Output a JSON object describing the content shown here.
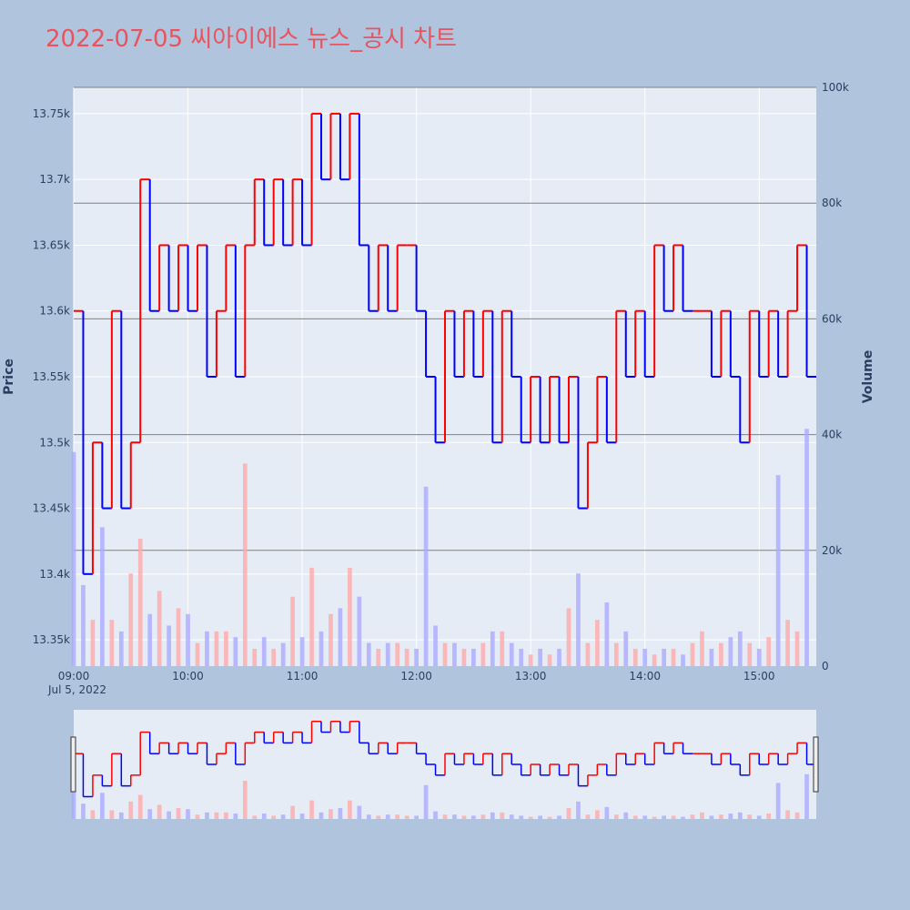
{
  "title": "2022-07-05 씨아이에스 뉴스_공시 차트",
  "chart_data": {
    "type": "candlestick+bar",
    "date_label": "Jul 5, 2022",
    "x_range": [
      "09:00",
      "15:30"
    ],
    "x_ticks": [
      "09:00",
      "10:00",
      "11:00",
      "12:00",
      "13:00",
      "14:00",
      "15:00"
    ],
    "y_price": {
      "label": "Price",
      "range": [
        13330,
        13770
      ],
      "ticks": [
        13350,
        13400,
        13450,
        13500,
        13550,
        13600,
        13650,
        13700,
        13750
      ],
      "tick_labels": [
        "13.35k",
        "13.4k",
        "13.45k",
        "13.5k",
        "13.55k",
        "13.6k",
        "13.65k",
        "13.7k",
        "13.75k"
      ]
    },
    "y_volume": {
      "label": "Volume",
      "range": [
        0,
        100000
      ],
      "ticks": [
        0,
        20000,
        40000,
        60000,
        80000,
        100000
      ],
      "tick_labels": [
        "0",
        "20k",
        "40k",
        "60k",
        "80k",
        "100k"
      ]
    },
    "colors": {
      "up": "#ff0000",
      "down": "#0000ff",
      "up_volume": "#ffaaaa",
      "down_volume": "#aaaaff",
      "grid": "#ffffff",
      "volume_grid": "#808080",
      "plot_bg": "#e5ecf6",
      "page_bg": "#b0c4de"
    },
    "price_series": [
      [
        "09:00",
        13600
      ],
      [
        "09:05",
        13400
      ],
      [
        "09:10",
        13500
      ],
      [
        "09:15",
        13450
      ],
      [
        "09:20",
        13600
      ],
      [
        "09:25",
        13450
      ],
      [
        "09:30",
        13500
      ],
      [
        "09:35",
        13700
      ],
      [
        "09:40",
        13600
      ],
      [
        "09:45",
        13650
      ],
      [
        "09:50",
        13600
      ],
      [
        "09:55",
        13650
      ],
      [
        "10:00",
        13600
      ],
      [
        "10:05",
        13650
      ],
      [
        "10:10",
        13550
      ],
      [
        "10:15",
        13600
      ],
      [
        "10:20",
        13650
      ],
      [
        "10:25",
        13550
      ],
      [
        "10:30",
        13650
      ],
      [
        "10:35",
        13700
      ],
      [
        "10:40",
        13650
      ],
      [
        "10:45",
        13700
      ],
      [
        "10:50",
        13650
      ],
      [
        "10:55",
        13700
      ],
      [
        "11:00",
        13650
      ],
      [
        "11:05",
        13750
      ],
      [
        "11:10",
        13700
      ],
      [
        "11:15",
        13750
      ],
      [
        "11:20",
        13700
      ],
      [
        "11:25",
        13750
      ],
      [
        "11:30",
        13650
      ],
      [
        "11:35",
        13600
      ],
      [
        "11:40",
        13650
      ],
      [
        "11:45",
        13600
      ],
      [
        "11:50",
        13650
      ],
      [
        "11:55",
        13650
      ],
      [
        "12:00",
        13600
      ],
      [
        "12:05",
        13550
      ],
      [
        "12:10",
        13500
      ],
      [
        "12:15",
        13600
      ],
      [
        "12:20",
        13550
      ],
      [
        "12:25",
        13600
      ],
      [
        "12:30",
        13550
      ],
      [
        "12:35",
        13600
      ],
      [
        "12:40",
        13500
      ],
      [
        "12:45",
        13600
      ],
      [
        "12:50",
        13550
      ],
      [
        "12:55",
        13500
      ],
      [
        "13:00",
        13550
      ],
      [
        "13:05",
        13500
      ],
      [
        "13:10",
        13550
      ],
      [
        "13:15",
        13500
      ],
      [
        "13:20",
        13550
      ],
      [
        "13:25",
        13450
      ],
      [
        "13:30",
        13500
      ],
      [
        "13:35",
        13550
      ],
      [
        "13:40",
        13500
      ],
      [
        "13:45",
        13600
      ],
      [
        "13:50",
        13550
      ],
      [
        "13:55",
        13600
      ],
      [
        "14:00",
        13550
      ],
      [
        "14:05",
        13650
      ],
      [
        "14:10",
        13600
      ],
      [
        "14:15",
        13650
      ],
      [
        "14:20",
        13600
      ],
      [
        "14:25",
        13600
      ],
      [
        "14:30",
        13600
      ],
      [
        "14:35",
        13550
      ],
      [
        "14:40",
        13600
      ],
      [
        "14:45",
        13550
      ],
      [
        "14:50",
        13500
      ],
      [
        "14:55",
        13600
      ],
      [
        "15:00",
        13550
      ],
      [
        "15:05",
        13600
      ],
      [
        "15:10",
        13550
      ],
      [
        "15:15",
        13600
      ],
      [
        "15:20",
        13650
      ],
      [
        "15:25",
        13550
      ]
    ],
    "volume_series": [
      [
        "09:00",
        37000
      ],
      [
        "09:05",
        14000
      ],
      [
        "09:10",
        8000
      ],
      [
        "09:15",
        24000
      ],
      [
        "09:20",
        8000
      ],
      [
        "09:25",
        6000
      ],
      [
        "09:30",
        16000
      ],
      [
        "09:35",
        22000
      ],
      [
        "09:40",
        9000
      ],
      [
        "09:45",
        13000
      ],
      [
        "09:50",
        7000
      ],
      [
        "09:55",
        10000
      ],
      [
        "10:00",
        9000
      ],
      [
        "10:05",
        4000
      ],
      [
        "10:10",
        6000
      ],
      [
        "10:15",
        6000
      ],
      [
        "10:20",
        6000
      ],
      [
        "10:25",
        5000
      ],
      [
        "10:30",
        35000
      ],
      [
        "10:35",
        3000
      ],
      [
        "10:40",
        5000
      ],
      [
        "10:45",
        3000
      ],
      [
        "10:50",
        4000
      ],
      [
        "10:55",
        12000
      ],
      [
        "11:00",
        5000
      ],
      [
        "11:05",
        17000
      ],
      [
        "11:10",
        6000
      ],
      [
        "11:15",
        9000
      ],
      [
        "11:20",
        10000
      ],
      [
        "11:25",
        17000
      ],
      [
        "11:30",
        12000
      ],
      [
        "11:35",
        4000
      ],
      [
        "11:40",
        3000
      ],
      [
        "11:45",
        4000
      ],
      [
        "11:50",
        4000
      ],
      [
        "11:55",
        3000
      ],
      [
        "12:00",
        3000
      ],
      [
        "12:05",
        31000
      ],
      [
        "12:10",
        7000
      ],
      [
        "12:15",
        4000
      ],
      [
        "12:20",
        4000
      ],
      [
        "12:25",
        3000
      ],
      [
        "12:30",
        3000
      ],
      [
        "12:35",
        4000
      ],
      [
        "12:40",
        6000
      ],
      [
        "12:45",
        6000
      ],
      [
        "12:50",
        4000
      ],
      [
        "12:55",
        3000
      ],
      [
        "13:00",
        2000
      ],
      [
        "13:05",
        3000
      ],
      [
        "13:10",
        2000
      ],
      [
        "13:15",
        3000
      ],
      [
        "13:20",
        10000
      ],
      [
        "13:25",
        16000
      ],
      [
        "13:30",
        4000
      ],
      [
        "13:35",
        8000
      ],
      [
        "13:40",
        11000
      ],
      [
        "13:45",
        4000
      ],
      [
        "13:50",
        6000
      ],
      [
        "13:55",
        3000
      ],
      [
        "14:00",
        3000
      ],
      [
        "14:05",
        2000
      ],
      [
        "14:10",
        3000
      ],
      [
        "14:15",
        3000
      ],
      [
        "14:20",
        2000
      ],
      [
        "14:25",
        4000
      ],
      [
        "14:30",
        6000
      ],
      [
        "14:35",
        3000
      ],
      [
        "14:40",
        4000
      ],
      [
        "14:45",
        5000
      ],
      [
        "14:50",
        6000
      ],
      [
        "14:55",
        4000
      ],
      [
        "15:00",
        3000
      ],
      [
        "15:05",
        5000
      ],
      [
        "15:10",
        33000
      ],
      [
        "15:15",
        8000
      ],
      [
        "15:20",
        6000
      ],
      [
        "15:25",
        41000
      ]
    ]
  }
}
